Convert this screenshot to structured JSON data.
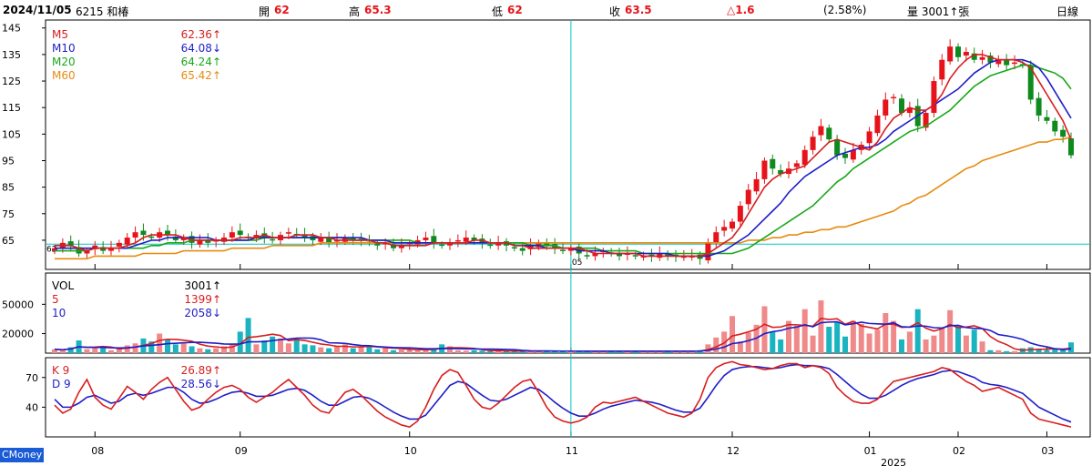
{
  "header": {
    "date": "2024/11/05",
    "stock": "6215 和椿",
    "open_label": "開",
    "open": "62",
    "high_label": "高",
    "high": "65.3",
    "low_label": "低",
    "low": "62",
    "close_label": "收",
    "close": "63.5",
    "change": "△1.6",
    "change_pct": "(2.58%)",
    "volume": "量 3001↑張",
    "period": "日線"
  },
  "brand": "CMoney",
  "colors": {
    "up": "#e6141a",
    "down": "#0e8a1f",
    "ma5": "#d81e1e",
    "ma10": "#1e1ec8",
    "ma20": "#18a818",
    "ma60": "#e88a10",
    "vol_up": "#f08a8a",
    "vol_down": "#1ab3c0",
    "cursor": "#00c8c8"
  },
  "chart_data": [
    {
      "type": "candlestick",
      "title": "price",
      "yticks": [
        65,
        75,
        85,
        95,
        105,
        115,
        125,
        135,
        145
      ],
      "ylim": [
        54,
        148
      ],
      "xticks": [
        "08",
        "09",
        "10",
        "11",
        "12",
        "01",
        "02",
        "03"
      ],
      "year_label": "2025",
      "cursor_label": "05",
      "low_marker": "62",
      "legend": [
        {
          "name": "M5",
          "value": "62.36",
          "arrow": "↑"
        },
        {
          "name": "M10",
          "value": "64.08",
          "arrow": "↓"
        },
        {
          "name": "M20",
          "value": "64.24",
          "arrow": "↑"
        },
        {
          "name": "M60",
          "value": "65.42",
          "arrow": "↑"
        }
      ],
      "closes": [
        62,
        64,
        63,
        60,
        61,
        63,
        61,
        62,
        64,
        66,
        68,
        67,
        66,
        68,
        67,
        65,
        66,
        64,
        65,
        64,
        65,
        66,
        68,
        67,
        66,
        67,
        66,
        65,
        67,
        68,
        67,
        66,
        65,
        66,
        64,
        65,
        66,
        65,
        65,
        64,
        63,
        64,
        62,
        63,
        64,
        65,
        66,
        64,
        63,
        64,
        65,
        66,
        65,
        64,
        63,
        64,
        63,
        62,
        61,
        63,
        64,
        63,
        62,
        61,
        62,
        60,
        59,
        60,
        61,
        60,
        59,
        60,
        59,
        59,
        59,
        60,
        59,
        59,
        59,
        59,
        58,
        64,
        68,
        70,
        72,
        78,
        84,
        88,
        95,
        92,
        90,
        92,
        94,
        99,
        104,
        108,
        103,
        97,
        96,
        99,
        101,
        106,
        112,
        118,
        119,
        113,
        115,
        108,
        113,
        125,
        133,
        138,
        134,
        136,
        133,
        134,
        132,
        133,
        131,
        132,
        131,
        118,
        112,
        110,
        106,
        104,
        97
      ],
      "ma": {
        "M5": [
          63,
          63,
          63,
          62,
          61,
          62,
          62,
          62,
          62,
          63,
          64,
          66,
          67,
          67,
          67,
          67,
          66,
          65,
          65,
          65,
          65,
          65,
          65,
          66,
          66,
          66,
          67,
          66,
          66,
          66,
          67,
          67,
          67,
          66,
          66,
          65,
          65,
          65,
          65,
          65,
          64,
          64,
          63,
          63,
          63,
          63,
          63,
          64,
          64,
          64,
          64,
          64,
          65,
          65,
          64,
          64,
          64,
          63,
          63,
          62,
          62,
          62,
          62,
          62,
          62,
          62,
          61,
          60,
          60,
          60,
          60,
          60,
          60,
          59,
          59,
          59,
          59,
          59,
          59,
          59,
          59,
          60,
          62,
          64,
          66,
          70,
          75,
          80,
          85,
          88,
          90,
          91,
          92,
          93,
          96,
          99,
          102,
          103,
          102,
          101,
          100,
          99,
          102,
          107,
          111,
          113,
          115,
          114,
          114,
          116,
          120,
          126,
          130,
          133,
          135,
          135,
          134,
          133,
          133,
          133,
          132,
          130,
          125,
          120,
          115,
          110,
          103
        ],
        "M10": [
          62,
          62,
          62,
          62,
          62,
          62,
          62,
          62,
          62,
          62,
          63,
          64,
          65,
          65,
          66,
          66,
          66,
          66,
          66,
          66,
          65,
          65,
          65,
          65,
          65,
          66,
          66,
          66,
          66,
          66,
          66,
          66,
          66,
          66,
          66,
          66,
          66,
          66,
          66,
          65,
          65,
          65,
          64,
          64,
          64,
          64,
          64,
          64,
          64,
          64,
          64,
          64,
          64,
          64,
          64,
          64,
          64,
          63,
          63,
          63,
          63,
          62,
          62,
          62,
          62,
          61,
          61,
          61,
          61,
          60,
          60,
          60,
          60,
          60,
          60,
          60,
          60,
          59,
          59,
          59,
          59,
          59,
          60,
          61,
          63,
          65,
          67,
          70,
          73,
          76,
          79,
          83,
          86,
          89,
          91,
          93,
          95,
          97,
          98,
          99,
          100,
          100,
          101,
          103,
          106,
          108,
          110,
          112,
          114,
          116,
          118,
          120,
          122,
          125,
          128,
          130,
          132,
          133,
          133,
          133,
          133,
          132,
          130,
          126,
          121,
          116,
          111
        ],
        "M20": [
          61,
          61,
          61,
          61,
          61,
          62,
          62,
          62,
          62,
          62,
          62,
          62,
          63,
          63,
          64,
          64,
          64,
          65,
          65,
          65,
          65,
          65,
          65,
          65,
          65,
          65,
          66,
          66,
          66,
          66,
          66,
          66,
          66,
          66,
          66,
          66,
          66,
          65,
          65,
          65,
          65,
          65,
          65,
          65,
          65,
          64,
          64,
          64,
          64,
          64,
          64,
          64,
          64,
          64,
          64,
          64,
          64,
          64,
          64,
          63,
          63,
          63,
          63,
          62,
          62,
          62,
          62,
          62,
          61,
          61,
          61,
          61,
          61,
          60,
          60,
          60,
          60,
          60,
          60,
          60,
          60,
          60,
          60,
          60,
          60,
          61,
          62,
          64,
          66,
          68,
          70,
          72,
          74,
          76,
          78,
          81,
          84,
          87,
          89,
          92,
          94,
          96,
          98,
          100,
          102,
          104,
          106,
          107,
          108,
          110,
          112,
          114,
          117,
          120,
          123,
          125,
          127,
          128,
          129,
          130,
          131,
          131,
          130,
          129,
          128,
          126,
          122
        ],
        "M60": [
          58,
          58,
          58,
          58,
          58,
          59,
          59,
          59,
          59,
          59,
          59,
          60,
          60,
          60,
          60,
          60,
          61,
          61,
          61,
          61,
          61,
          61,
          62,
          62,
          62,
          62,
          62,
          63,
          63,
          63,
          63,
          63,
          63,
          64,
          64,
          64,
          64,
          64,
          64,
          64,
          64,
          64,
          64,
          64,
          64,
          64,
          64,
          64,
          64,
          64,
          64,
          64,
          64,
          64,
          64,
          64,
          64,
          64,
          64,
          64,
          64,
          64,
          64,
          64,
          64,
          64,
          64,
          64,
          64,
          64,
          64,
          64,
          64,
          64,
          64,
          64,
          64,
          64,
          64,
          64,
          64,
          64,
          64,
          64,
          64,
          64,
          65,
          65,
          65,
          66,
          66,
          67,
          67,
          68,
          68,
          69,
          69,
          70,
          70,
          71,
          72,
          73,
          74,
          75,
          76,
          78,
          79,
          81,
          82,
          84,
          86,
          88,
          90,
          92,
          93,
          95,
          96,
          97,
          98,
          99,
          100,
          101,
          102,
          102,
          103,
          103,
          104
        ]
      }
    },
    {
      "type": "bar",
      "title": "volume",
      "yticks": [
        20000,
        50000
      ],
      "ylim": [
        0,
        82000
      ],
      "legend": [
        {
          "name": "VOL",
          "value": "3001",
          "arrow": "↑"
        },
        {
          "name": "5",
          "value": "1399",
          "arrow": "↑"
        },
        {
          "name": "10",
          "value": "2058",
          "arrow": "↓"
        }
      ],
      "values": [
        4000,
        3000,
        6000,
        13000,
        4000,
        5000,
        6000,
        3000,
        4000,
        8000,
        10000,
        15000,
        12000,
        20000,
        14000,
        9000,
        11000,
        7000,
        5000,
        4000,
        5000,
        7000,
        10000,
        22000,
        36000,
        9000,
        13000,
        17000,
        15000,
        10000,
        14000,
        9000,
        8000,
        6000,
        5000,
        7000,
        9000,
        5000,
        6000,
        8000,
        4000,
        5000,
        3000,
        4000,
        3000,
        3000,
        4000,
        5000,
        9000,
        7000,
        3000,
        2500,
        3000,
        2500,
        2000,
        2500,
        2000,
        2000,
        2000,
        2000,
        2000,
        2500,
        2000,
        2000,
        2000,
        2000,
        2000,
        2000,
        2000,
        2000,
        2000,
        2000,
        2000,
        2000,
        2000,
        2000,
        2000,
        2000,
        2000,
        2000,
        3000,
        9000,
        16000,
        22000,
        38000,
        12000,
        21000,
        29000,
        48000,
        22000,
        14000,
        33000,
        28000,
        45000,
        18000,
        54000,
        27000,
        32000,
        17000,
        33000,
        30000,
        20000,
        24000,
        41000,
        33000,
        14000,
        22000,
        45000,
        14000,
        18000,
        26000,
        44000,
        28000,
        18000,
        24000,
        12000,
        3000,
        3000,
        2000,
        2000,
        5000,
        6000,
        4500,
        3000,
        4000,
        3000,
        11000
      ]
    },
    {
      "type": "line",
      "title": "KD",
      "yticks": [
        40,
        70
      ],
      "ylim": [
        10,
        90
      ],
      "legend": [
        {
          "name": "K 9",
          "value": "26.89",
          "arrow": "↑"
        },
        {
          "name": "D 9",
          "value": "28.56",
          "arrow": "↓"
        }
      ],
      "K": [
        42,
        34,
        38,
        55,
        68,
        50,
        42,
        38,
        49,
        61,
        55,
        48,
        58,
        65,
        70,
        58,
        46,
        37,
        40,
        48,
        55,
        60,
        62,
        58,
        50,
        45,
        50,
        55,
        62,
        68,
        60,
        52,
        42,
        36,
        34,
        45,
        55,
        58,
        52,
        44,
        36,
        30,
        26,
        22,
        20,
        26,
        40,
        58,
        72,
        78,
        75,
        62,
        48,
        40,
        38,
        44,
        52,
        60,
        66,
        68,
        55,
        40,
        30,
        26,
        24,
        26,
        30,
        40,
        45,
        44,
        46,
        48,
        50,
        46,
        42,
        38,
        34,
        32,
        30,
        34,
        48,
        70,
        80,
        84,
        86,
        83,
        82,
        80,
        78,
        79,
        82,
        84,
        84,
        80,
        82,
        80,
        74,
        60,
        52,
        46,
        44,
        44,
        48,
        58,
        66,
        68,
        70,
        72,
        74,
        76,
        80,
        78,
        72,
        66,
        62,
        56,
        58,
        60,
        56,
        52,
        48,
        34,
        28,
        26,
        24,
        22,
        20
      ],
      "D": [
        48,
        40,
        40,
        44,
        50,
        52,
        48,
        44,
        46,
        52,
        54,
        52,
        54,
        57,
        60,
        60,
        55,
        48,
        44,
        45,
        48,
        52,
        55,
        56,
        54,
        51,
        51,
        52,
        55,
        58,
        59,
        57,
        52,
        46,
        42,
        42,
        46,
        50,
        51,
        49,
        45,
        40,
        35,
        31,
        28,
        28,
        32,
        42,
        52,
        62,
        66,
        64,
        58,
        52,
        47,
        46,
        48,
        52,
        56,
        60,
        58,
        52,
        45,
        39,
        34,
        31,
        31,
        34,
        38,
        41,
        43,
        45,
        47,
        46,
        45,
        43,
        40,
        37,
        35,
        35,
        39,
        50,
        62,
        72,
        78,
        80,
        81,
        81,
        80,
        79,
        80,
        82,
        83,
        82,
        82,
        81,
        79,
        73,
        66,
        59,
        53,
        49,
        49,
        52,
        57,
        62,
        66,
        69,
        71,
        73,
        76,
        77,
        76,
        73,
        70,
        65,
        63,
        62,
        60,
        57,
        54,
        47,
        40,
        36,
        32,
        28,
        25
      ]
    }
  ]
}
